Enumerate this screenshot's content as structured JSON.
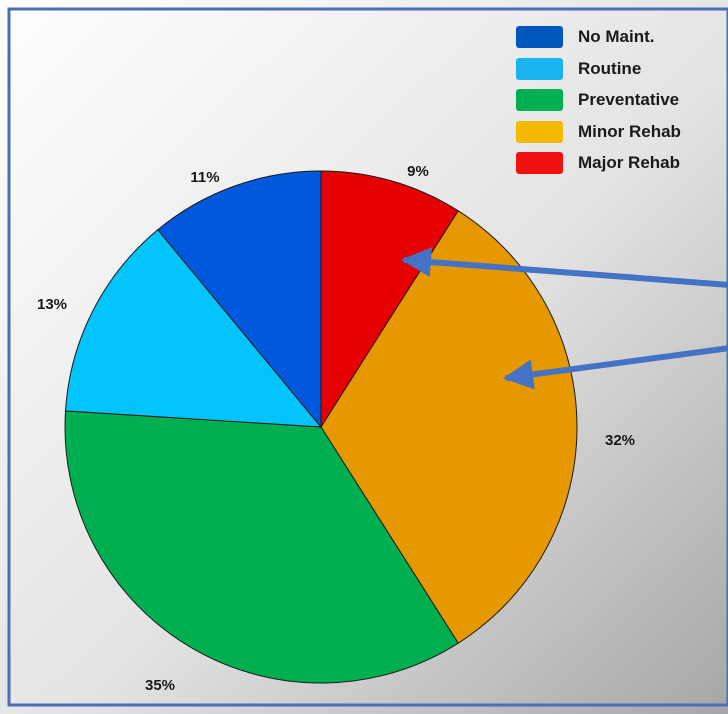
{
  "chart_data": {
    "type": "pie",
    "categories": [
      "No Maint.",
      "Routine",
      "Preventative",
      "Minor Rehab",
      "Major Rehab"
    ],
    "values": [
      11,
      13,
      35,
      32,
      9
    ],
    "value_labels": [
      "11%",
      "13%",
      "35%",
      "32%",
      "9%"
    ],
    "colors": [
      "#0058dd",
      "#00c4fa",
      "#00b050",
      "#e59800",
      "#e60000"
    ],
    "legend": {
      "placement": "top-right",
      "items": [
        {
          "label": "No Maint.",
          "color": "#0058bf"
        },
        {
          "label": "Routine",
          "color": "#1ab5f0"
        },
        {
          "label": "Preventative",
          "color": "#00b050"
        },
        {
          "label": "Minor Rehab",
          "color": "#f4ba00"
        },
        {
          "label": "Major Rehab",
          "color": "#f21111"
        }
      ]
    },
    "start_angle_deg": 0,
    "direction": "clockwise",
    "arrows_point_to": [
      "Major Rehab",
      "Minor Rehab"
    ]
  }
}
